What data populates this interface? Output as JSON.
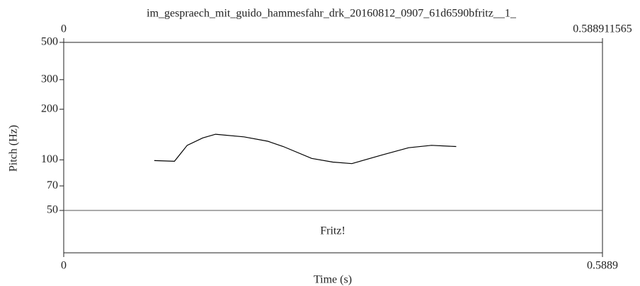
{
  "chart_data": {
    "type": "line",
    "title": "im_gespraech_mit_guido_hammesfahr_drk_20160812_0907_61d6590bfritz__1_",
    "xlabel": "Time (s)",
    "ylabel": "Pitch (Hz)",
    "xlim": [
      0,
      0.588911565
    ],
    "xticks": [
      0,
      0.5889
    ],
    "ylim": [
      50,
      500
    ],
    "yticks": [
      50,
      70,
      100,
      200,
      300,
      500
    ],
    "log_y": true,
    "series": [
      {
        "color": "#000000",
        "x": [
          0.099,
          0.121,
          0.135,
          0.152,
          0.166,
          0.197,
          0.223,
          0.24,
          0.271,
          0.294,
          0.315,
          0.348,
          0.377,
          0.402,
          0.429
        ],
        "values": [
          99,
          98,
          122,
          135,
          142,
          137,
          129,
          120,
          102,
          97,
          95,
          107,
          118,
          122,
          120
        ]
      }
    ],
    "tier": {
      "text": "Fritz!"
    }
  }
}
